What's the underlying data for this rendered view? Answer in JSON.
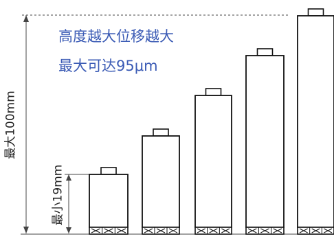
{
  "captions": {
    "line1": "高度越大位移越大",
    "line2": "最大可达95μm"
  },
  "dimensions": {
    "max_label": "最大100mm",
    "min_label": "最小19mm",
    "max_height_mm": 100,
    "min_height_mm": 19
  },
  "colors": {
    "caption": "#3b5bb5",
    "outline": "#111111",
    "dimension_line": "#444444"
  },
  "actuators": [
    {
      "name": "actuator-1"
    },
    {
      "name": "actuator-2"
    },
    {
      "name": "actuator-3"
    },
    {
      "name": "actuator-4"
    },
    {
      "name": "actuator-5"
    }
  ]
}
